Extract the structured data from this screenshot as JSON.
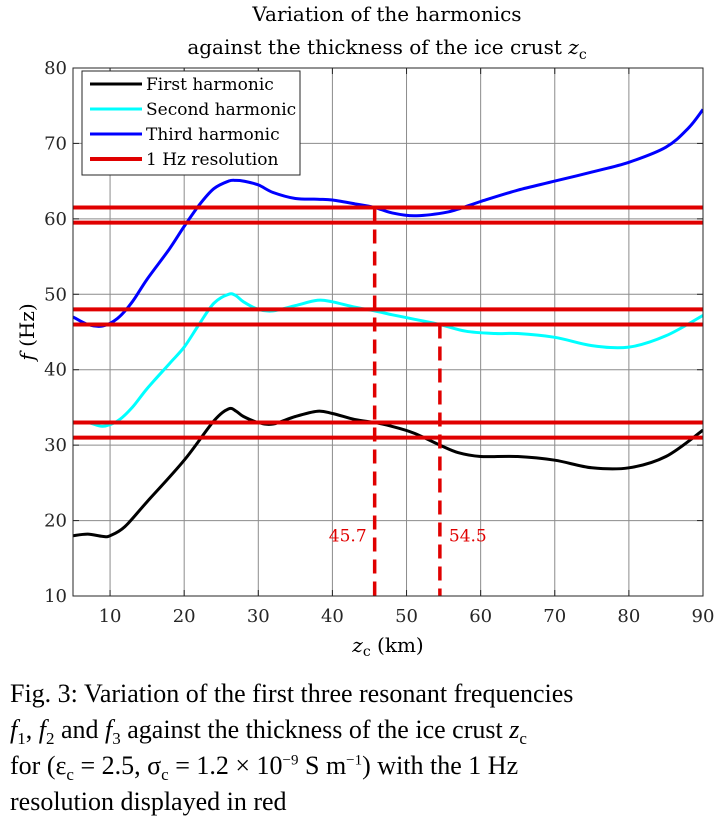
{
  "chart_data": {
    "type": "line",
    "title": [
      "Variation of the harmonics",
      "against the thickness of the ice crust z_c"
    ],
    "title_line1": "Variation of the harmonics",
    "title_line2_prefix": "against the thickness of the ice crust ",
    "title_line2_var": "z",
    "title_line2_sub": "c",
    "xlabel": "z_c (km)",
    "xlabel_var": "z",
    "xlabel_sub": "c",
    "xlabel_unit": "(km)",
    "ylabel": "f (Hz)",
    "ylabel_var": "f",
    "ylabel_unit": "(Hz)",
    "xlim": [
      5,
      90
    ],
    "ylim": [
      10,
      80
    ],
    "xticks": [
      10,
      20,
      30,
      40,
      50,
      60,
      70,
      80,
      90
    ],
    "yticks": [
      10,
      20,
      30,
      40,
      50,
      60,
      70,
      80
    ],
    "grid": true,
    "legend_position": "top-left",
    "series": [
      {
        "name": "First harmonic",
        "color": "#000000",
        "x": [
          5,
          7,
          9,
          10,
          12,
          15,
          20,
          24,
          26,
          27,
          28,
          30,
          32,
          35,
          38,
          40,
          43,
          45.7,
          48,
          51,
          54.5,
          57,
          60,
          65,
          70,
          75,
          80,
          85,
          90
        ],
        "y": [
          18,
          18.2,
          17.9,
          18,
          19.2,
          22.5,
          28,
          33.2,
          34.8,
          34.5,
          33.8,
          33,
          32.8,
          33.8,
          34.5,
          34.2,
          33.4,
          33,
          32.5,
          31.6,
          30,
          29,
          28.5,
          28.5,
          28,
          27,
          27,
          28.5,
          32
        ]
      },
      {
        "name": "Second harmonic",
        "color": "#00ffff",
        "x": [
          5,
          7,
          9,
          11,
          13,
          15,
          18,
          20,
          22,
          24,
          26,
          27,
          28,
          30,
          32,
          35,
          38,
          40,
          43,
          45.7,
          48,
          51,
          54.5,
          58,
          62,
          65,
          70,
          75,
          80,
          85,
          90
        ],
        "y": [
          33,
          33,
          32.5,
          33.2,
          35,
          37.5,
          40.8,
          43,
          46,
          48.8,
          50,
          49.8,
          49,
          48,
          47.8,
          48.5,
          49.2,
          49,
          48.3,
          47.8,
          47.3,
          46.7,
          46,
          45.1,
          44.8,
          44.8,
          44.3,
          43.2,
          43,
          44.5,
          47.2
        ]
      },
      {
        "name": "Third harmonic",
        "color": "#0000ff",
        "x": [
          5,
          7,
          9,
          11,
          13,
          15,
          18,
          20,
          22,
          24,
          26,
          27,
          28,
          30,
          32,
          35,
          38,
          40,
          43,
          45.7,
          48,
          51,
          55,
          57,
          60,
          65,
          70,
          75,
          80,
          85,
          88,
          90
        ],
        "y": [
          47,
          46,
          45.8,
          46.8,
          49,
          52,
          56,
          59,
          61.8,
          64,
          65,
          65.1,
          65,
          64.5,
          63.5,
          62.7,
          62.6,
          62.5,
          62,
          61.5,
          60.8,
          60.4,
          60.8,
          61.3,
          62.3,
          63.8,
          65,
          66.2,
          67.5,
          69.5,
          72,
          74.5
        ]
      }
    ],
    "resolution_legend": "1 Hz resolution",
    "resolution_color": "#e00000",
    "resolution_levels": [
      61.5,
      59.5,
      48,
      46,
      33,
      31
    ],
    "markers": [
      {
        "x": 45.7,
        "label": "45.7",
        "y_top": 61.5
      },
      {
        "x": 54.5,
        "label": "54.5",
        "y_top": 46
      }
    ]
  },
  "caption": {
    "fig": "Fig. 3:",
    "text1": "Variation of the first three resonant frequencies",
    "f1": "f",
    "f1_sub": "1",
    "f2": "f",
    "f2_sub": "2",
    "and": "and",
    "f3": "f",
    "f3_sub": "3",
    "text2": "against the thickness of the ice crust",
    "zc": "z",
    "zc_sub": "c",
    "for": "for",
    "eps": "(ε",
    "eps_sub": "c",
    "eps_val": " = 2.5, ",
    "sigma": "σ",
    "sigma_sub": "c",
    "sigma_val": " = 1.2 × 10",
    "sigma_exp": "−9",
    "unit": " S m",
    "unit_exp": "−1",
    "text3": ") with the 1 Hz",
    "text4": "resolution displayed in red"
  }
}
